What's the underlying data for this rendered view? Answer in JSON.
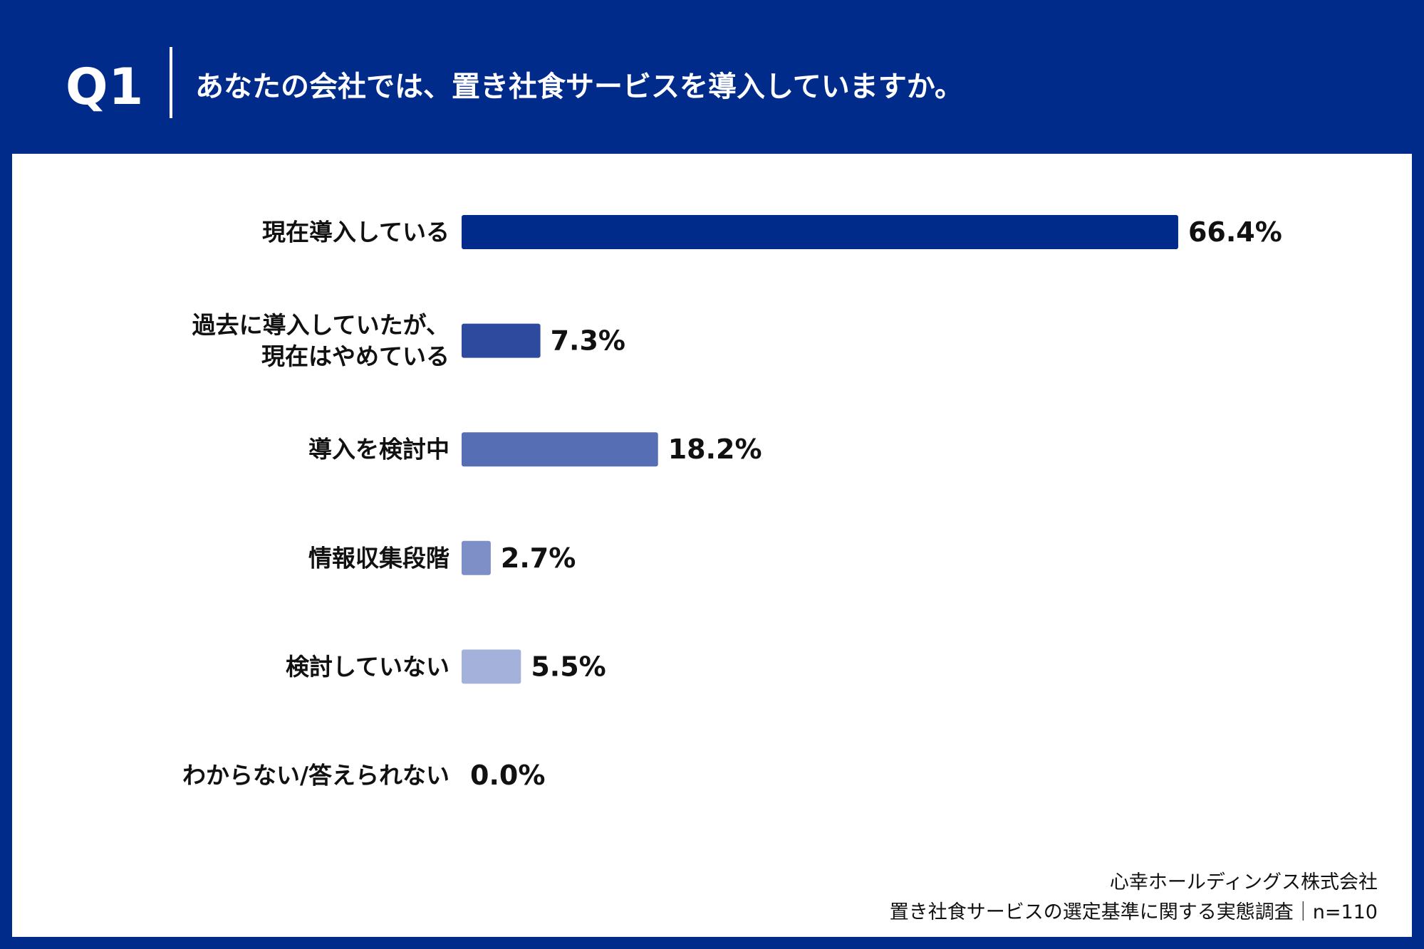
{
  "header": {
    "qnum": "Q1",
    "question": "あなたの会社では、置き社食サービスを導入していますか。"
  },
  "footer": {
    "company": "心幸ホールディングス株式会社",
    "survey": "置き社食サービスの選定基準に関する実態調査｜n=110"
  },
  "chart_data": {
    "type": "bar",
    "orientation": "horizontal",
    "categories": [
      [
        "現在導入している"
      ],
      [
        "過去に導入していたが、",
        "現在はやめている"
      ],
      [
        "導入を検討中"
      ],
      [
        "情報収集段階"
      ],
      [
        "検討していない"
      ],
      [
        "わからない/答えられない"
      ]
    ],
    "values": [
      66.4,
      7.3,
      18.2,
      2.7,
      5.5,
      0.0
    ],
    "value_labels": [
      "66.4%",
      "7.3%",
      "18.2%",
      "2.7%",
      "5.5%",
      "0.0%"
    ],
    "colors": [
      "#002B8A",
      "#2E4A9E",
      "#566EB3",
      "#7D8FC6",
      "#A4B1DA",
      "#C8D0EA"
    ],
    "xlim": [
      0,
      100
    ],
    "grid": false,
    "legend": "none"
  }
}
